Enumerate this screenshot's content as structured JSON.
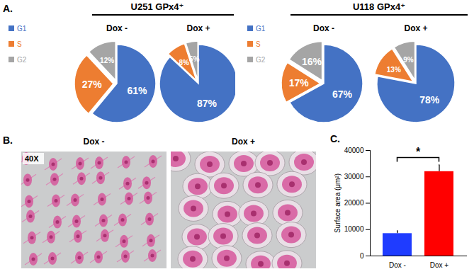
{
  "chart_data": [
    {
      "type": "pie",
      "panel": "A.",
      "title": "U251 GPx4⁺",
      "categories": [
        "G1",
        "S",
        "G2"
      ],
      "colors": [
        "#4472c4",
        "#ed7d31",
        "#a5a5a5"
      ],
      "legend": "left",
      "data_labels": true,
      "series": [
        {
          "name": "Dox -",
          "values": [
            61,
            27,
            12
          ],
          "value_labels": [
            "61%",
            "27%",
            "12%"
          ]
        },
        {
          "name": "Dox +",
          "values": [
            87,
            8,
            5
          ],
          "value_labels": [
            "87%",
            "8%",
            "5%"
          ]
        }
      ]
    },
    {
      "type": "pie",
      "title": "U118 GPx4⁺",
      "categories": [
        "G1",
        "S",
        "G2"
      ],
      "colors": [
        "#4472c4",
        "#ed7d31",
        "#a5a5a5"
      ],
      "legend": "left",
      "data_labels": true,
      "series": [
        {
          "name": "Dox -",
          "values": [
            67,
            17,
            16
          ],
          "value_labels": [
            "67%",
            "17%",
            "16%"
          ]
        },
        {
          "name": "Dox +",
          "values": [
            78,
            13,
            9
          ],
          "value_labels": [
            "78%",
            "13%",
            "9%"
          ]
        }
      ]
    },
    {
      "type": "image",
      "panel": "B.",
      "categories": [
        "Dox -",
        "Dox +"
      ],
      "annotations": [
        "40X"
      ]
    },
    {
      "type": "bar",
      "panel": "C.",
      "categories": [
        "Dox -",
        "Dox +"
      ],
      "values": [
        8500,
        32000
      ],
      "errors": [
        1000,
        2500
      ],
      "colors": [
        "#1f3cff",
        "#ff0000"
      ],
      "ylabel": "Surface area (μm²)",
      "ylim": [
        0,
        40000
      ],
      "yticks": [
        0,
        10000,
        20000,
        30000,
        40000
      ],
      "annotations": [
        "*"
      ]
    }
  ]
}
